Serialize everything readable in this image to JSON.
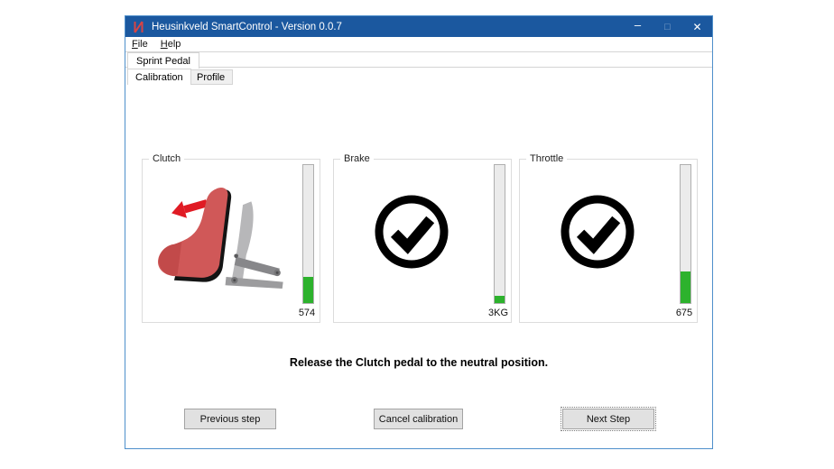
{
  "window": {
    "title": "Heusinkveld SmartControl - Version 0.0.7",
    "controls": {
      "minimize": "–",
      "maximize": "□",
      "close": "✕"
    }
  },
  "menu": {
    "file": {
      "accel": "F",
      "rest": "ile"
    },
    "help": {
      "accel": "H",
      "rest": "elp"
    }
  },
  "tabs": {
    "device": "Sprint Pedal",
    "calibration": "Calibration",
    "profile": "Profile"
  },
  "panels": [
    {
      "label": "Clutch",
      "value": "574",
      "fill_pct": 19,
      "icon": "pedal-release-illustration"
    },
    {
      "label": "Brake",
      "value": "3KG",
      "fill_pct": 5,
      "icon": "check-circle"
    },
    {
      "label": "Throttle",
      "value": "675",
      "fill_pct": 23,
      "icon": "check-circle"
    }
  ],
  "instruction": "Release the Clutch pedal to the neutral position.",
  "buttons": {
    "previous": "Previous step",
    "cancel": "Cancel calibration",
    "next": "Next Step"
  },
  "colors": {
    "titlebar": "#1b589f",
    "window_border": "#4e8fcb",
    "progress_green": "#2db22d",
    "progress_track": "#ebebeb",
    "pedal_red": "#d05858",
    "arrow_red": "#e01b24"
  }
}
